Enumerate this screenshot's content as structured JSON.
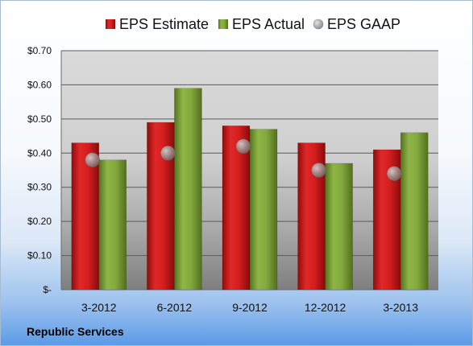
{
  "chart_data": {
    "type": "bar",
    "categories": [
      "3-2012",
      "6-2012",
      "9-2012",
      "12-2012",
      "3-2013"
    ],
    "series": [
      {
        "name": "EPS Estimate",
        "values": [
          0.43,
          0.49,
          0.48,
          0.43,
          0.41
        ],
        "color": "#d01c1c",
        "kind": "bar"
      },
      {
        "name": "EPS Actual",
        "values": [
          0.38,
          0.59,
          0.47,
          0.37,
          0.46
        ],
        "color": "#7ea33a",
        "kind": "bar"
      },
      {
        "name": "EPS GAAP",
        "values": [
          0.38,
          0.4,
          0.42,
          0.35,
          0.34
        ],
        "color": "#9a9a9a",
        "kind": "marker"
      }
    ],
    "yticks": [
      "$-",
      "$0.10",
      "$0.20",
      "$0.30",
      "$0.40",
      "$0.50",
      "$0.60",
      "$0.70"
    ],
    "ylim": [
      0,
      0.7
    ],
    "grid": true,
    "legend_position": "top",
    "footer": "Republic Services"
  }
}
